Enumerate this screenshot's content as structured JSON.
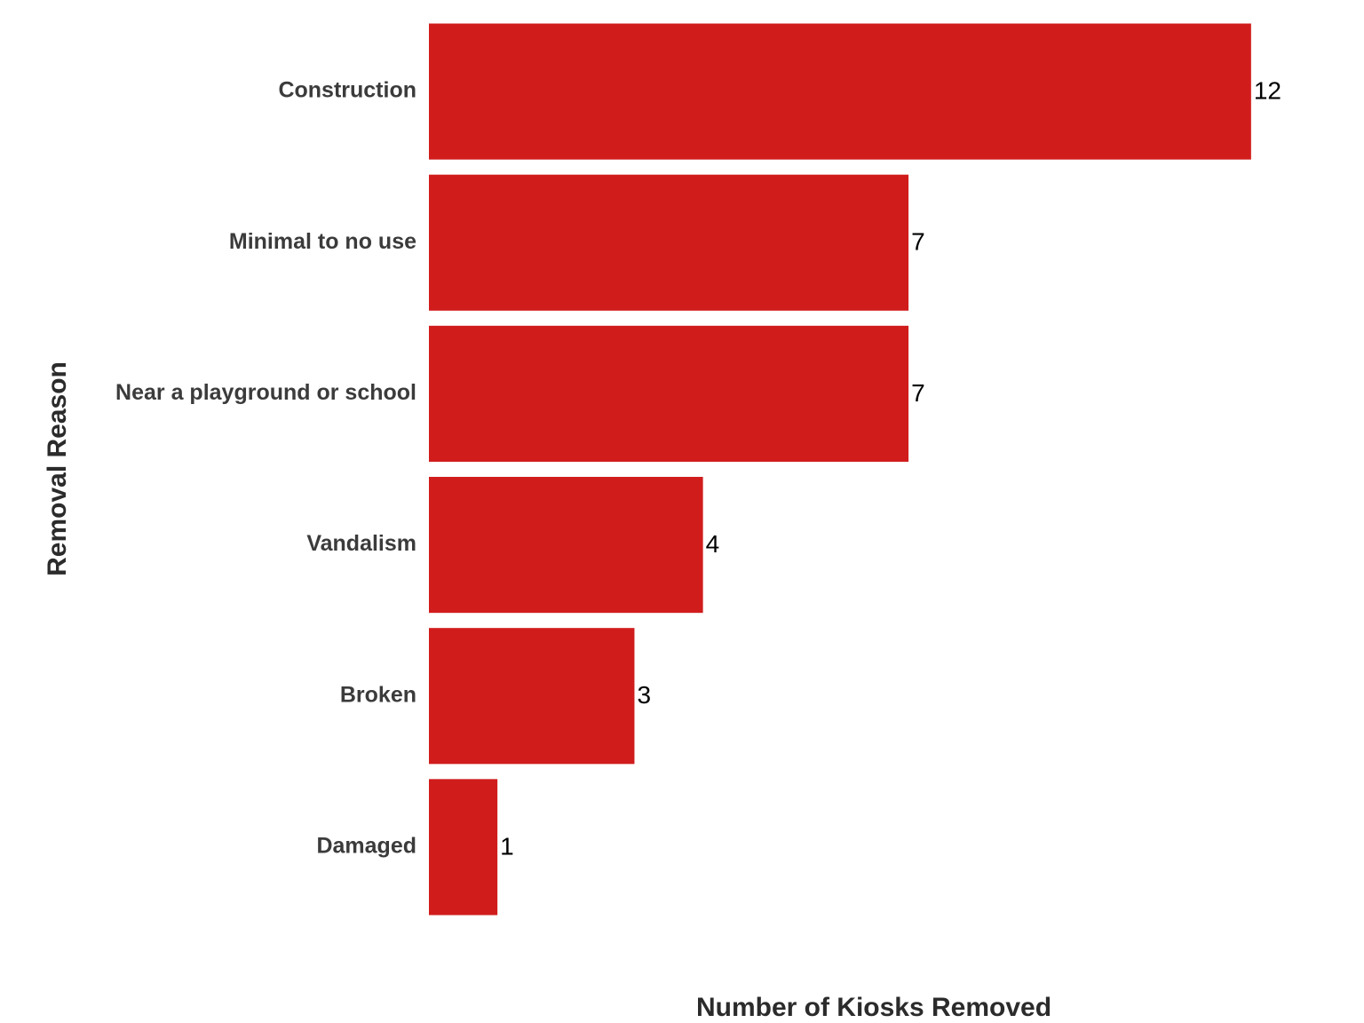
{
  "chart_data": {
    "type": "hbar",
    "y_label": "Removal Reason",
    "x_label": "Number of Kiosks Removed",
    "categories": [
      "Construction",
      "Minimal to no use",
      "Near a playground or school",
      "Vandalism",
      "Broken",
      "Damaged"
    ],
    "values": [
      12,
      7,
      7,
      4,
      3,
      1
    ],
    "color": "#d11c1c",
    "xlim": [
      0,
      13
    ]
  }
}
